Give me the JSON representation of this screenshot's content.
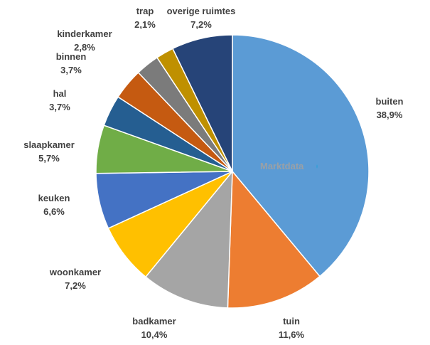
{
  "chart_data": {
    "type": "pie",
    "title": "",
    "slices": [
      {
        "label": "buiten",
        "value_text": "38,9%",
        "value": 38.9,
        "color": "#5b9bd5"
      },
      {
        "label": "tuin",
        "value_text": "11,6%",
        "value": 11.6,
        "color": "#ed7d31"
      },
      {
        "label": "badkamer",
        "value_text": "10,4%",
        "value": 10.4,
        "color": "#a5a5a5"
      },
      {
        "label": "woonkamer",
        "value_text": "7,2%",
        "value": 7.2,
        "color": "#ffc000"
      },
      {
        "label": "keuken",
        "value_text": "6,6%",
        "value": 6.6,
        "color": "#4472c4"
      },
      {
        "label": "slaapkamer",
        "value_text": "5,7%",
        "value": 5.7,
        "color": "#70ad47"
      },
      {
        "label": "hal",
        "value_text": "3,7%",
        "value": 3.7,
        "color": "#255e91"
      },
      {
        "label": "binnen",
        "value_text": "3,7%",
        "value": 3.7,
        "color": "#c55a11"
      },
      {
        "label": "kinderkamer",
        "value_text": "2,8%",
        "value": 2.8,
        "color": "#7b7b7b"
      },
      {
        "label": "trap",
        "value_text": "2,1%",
        "value": 2.1,
        "color": "#bf9000"
      },
      {
        "label": "overige ruimtes",
        "value_text": "7,2%",
        "value": 7.2,
        "color": "#264478"
      }
    ],
    "start": "top",
    "direction": "clockwise"
  },
  "watermark": "Marktdata"
}
